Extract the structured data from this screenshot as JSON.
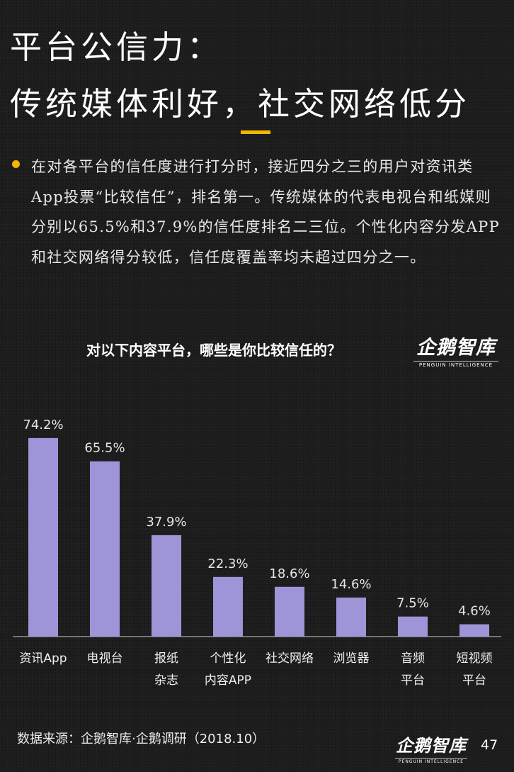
{
  "title_line1": "平台公信力：",
  "title_line2": "传统媒体利好，社交网络低分",
  "intro": "在对各平台的信任度进行打分时，接近四分之三的用户对资讯类App投票“比较信任”，排名第一。传统媒体的代表电视台和纸媒则分别以65.5%和37.9%的信任度排名二三位。个性化内容分发APP和社交网络得分较低，信任度覆盖率均未超过四分之一。",
  "logo": {
    "name": "企鹅智库",
    "sub": "PENGUIN INTELLIGENCE"
  },
  "footer": "数据来源：企鹅智库·企鹅调研（2018.10）",
  "page_number": "47",
  "colors": {
    "bar": "#9e95d8",
    "accent": "#f2b705",
    "background": "#1b1b1b"
  },
  "chart_data": {
    "type": "bar",
    "title": "对以下内容平台，哪些是你比较信任的？",
    "unit": "%",
    "categories": [
      [
        "资讯App"
      ],
      [
        "电视台"
      ],
      [
        "报纸",
        "杂志"
      ],
      [
        "个性化",
        "内容APP"
      ],
      [
        "社交网络"
      ],
      [
        "浏览器"
      ],
      [
        "音频",
        "平台"
      ],
      [
        "短视频",
        "平台"
      ]
    ],
    "values": [
      74.2,
      65.5,
      37.9,
      22.3,
      18.6,
      14.6,
      7.5,
      4.6
    ],
    "data_labels": [
      "74.2%",
      "65.5%",
      "37.9%",
      "22.3%",
      "18.6%",
      "14.6%",
      "7.5%",
      "4.6%"
    ],
    "ylim": [
      0,
      80
    ],
    "grid": false,
    "legend": "none"
  }
}
